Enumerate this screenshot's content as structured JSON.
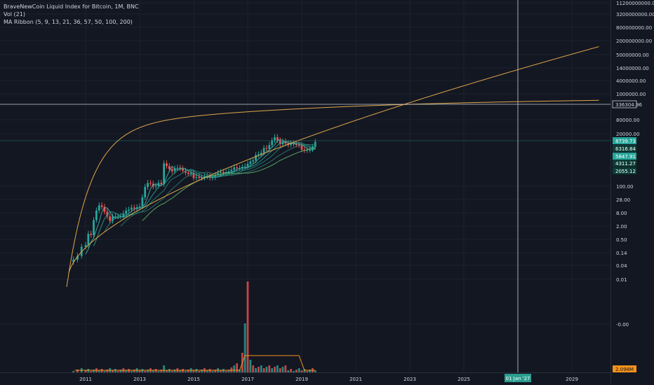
{
  "legend": {
    "main": "BraveNewCoin Liquid Index for Bitcoin, 1M, BNC",
    "vol": "Vol (21)",
    "ma": "MA Ribbon (5, 9, 13, 21, 36, 57, 50, 100, 200)"
  },
  "colors": {
    "background": "#131722",
    "grid": "#1e222d",
    "axis_text": "#d1d4dc",
    "up": "#26a69a",
    "down": "#ef5350",
    "curve": "#e0a84a",
    "crosshair": "#c8ccd4",
    "tag_dark": "#0b3d36",
    "tag_green": "#26a69a",
    "vol_tag": "#f7931a"
  },
  "chart_data": {
    "type": "candlestick",
    "y_scale": "log",
    "y_ticks": [
      "11200000000.00",
      "3200000000.00",
      "800000000.00",
      "200000000.00",
      "50000000.00",
      "14000000.00",
      "4000000.00",
      "1000000.00",
      "80000.00",
      "20000.00",
      "100.00",
      "28.00",
      "8.00",
      "2.00",
      "0.50",
      "0.14",
      "0.04",
      "0.01",
      "-0.00"
    ],
    "x_ticks": [
      "2011",
      "2013",
      "2015",
      "2017",
      "2019",
      "2021",
      "2023",
      "2025",
      "2027",
      "2029"
    ],
    "price_tags": [
      {
        "label": "336304.96",
        "style": "outline"
      },
      {
        "label": "8739.73",
        "style": "green"
      },
      {
        "label": "6316.84",
        "style": "dark"
      },
      {
        "label": "5847.91",
        "style": "green"
      },
      {
        "label": "4311.27",
        "style": "dark"
      },
      {
        "label": "2055.12",
        "style": "dark"
      }
    ],
    "volume_tag": "2.098M",
    "crosshair": {
      "date": "01 Jan '27",
      "price": 336304.96
    },
    "monthly_close": [
      [
        2010.55,
        0.07
      ],
      [
        2010.7,
        0.1
      ],
      [
        2010.85,
        0.25
      ],
      [
        2011.0,
        0.3
      ],
      [
        2011.1,
        0.9
      ],
      [
        2011.2,
        0.8
      ],
      [
        2011.3,
        3.5
      ],
      [
        2011.4,
        9
      ],
      [
        2011.5,
        15
      ],
      [
        2011.6,
        13
      ],
      [
        2011.7,
        8
      ],
      [
        2011.8,
        5
      ],
      [
        2011.9,
        3.2
      ],
      [
        2012.0,
        5
      ],
      [
        2012.1,
        5
      ],
      [
        2012.2,
        5
      ],
      [
        2012.3,
        5.1
      ],
      [
        2012.4,
        6.7
      ],
      [
        2012.5,
        9
      ],
      [
        2012.6,
        10
      ],
      [
        2012.7,
        12
      ],
      [
        2012.8,
        11
      ],
      [
        2012.9,
        12.5
      ],
      [
        2013.0,
        13.5
      ],
      [
        2013.1,
        33
      ],
      [
        2013.2,
        93
      ],
      [
        2013.3,
        139
      ],
      [
        2013.4,
        129
      ],
      [
        2013.5,
        97
      ],
      [
        2013.6,
        106
      ],
      [
        2013.7,
        141
      ],
      [
        2013.8,
        123
      ],
      [
        2013.9,
        1000
      ],
      [
        2014.0,
        760
      ],
      [
        2014.1,
        560
      ],
      [
        2014.2,
        450
      ],
      [
        2014.3,
        600
      ],
      [
        2014.4,
        640
      ],
      [
        2014.5,
        590
      ],
      [
        2014.6,
        480
      ],
      [
        2014.7,
        390
      ],
      [
        2014.8,
        340
      ],
      [
        2014.9,
        380
      ],
      [
        2015.0,
        230
      ],
      [
        2015.1,
        250
      ],
      [
        2015.2,
        240
      ],
      [
        2015.3,
        230
      ],
      [
        2015.4,
        260
      ],
      [
        2015.5,
        280
      ],
      [
        2015.6,
        230
      ],
      [
        2015.7,
        240
      ],
      [
        2015.8,
        310
      ],
      [
        2015.9,
        380
      ],
      [
        2016.0,
        420
      ],
      [
        2016.1,
        370
      ],
      [
        2016.2,
        410
      ],
      [
        2016.3,
        450
      ],
      [
        2016.4,
        530
      ],
      [
        2016.5,
        670
      ],
      [
        2016.6,
        620
      ],
      [
        2016.7,
        620
      ],
      [
        2016.8,
        700
      ],
      [
        2016.9,
        740
      ],
      [
        2017.0,
        960
      ],
      [
        2017.1,
        1190
      ],
      [
        2017.2,
        1350
      ],
      [
        2017.3,
        2300
      ],
      [
        2017.4,
        2500
      ],
      [
        2017.5,
        2900
      ],
      [
        2017.6,
        4700
      ],
      [
        2017.7,
        4350
      ],
      [
        2017.8,
        6400
      ],
      [
        2017.9,
        10000
      ],
      [
        2018.0,
        14000
      ],
      [
        2018.1,
        10300
      ],
      [
        2018.2,
        6900
      ],
      [
        2018.3,
        9200
      ],
      [
        2018.4,
        7500
      ],
      [
        2018.5,
        6400
      ],
      [
        2018.6,
        7700
      ],
      [
        2018.7,
        7000
      ],
      [
        2018.8,
        6600
      ],
      [
        2018.9,
        6300
      ],
      [
        2019.0,
        4000
      ],
      [
        2019.1,
        3700
      ],
      [
        2019.2,
        3800
      ],
      [
        2019.3,
        4100
      ],
      [
        2019.4,
        5300
      ],
      [
        2019.5,
        8700
      ]
    ]
  }
}
